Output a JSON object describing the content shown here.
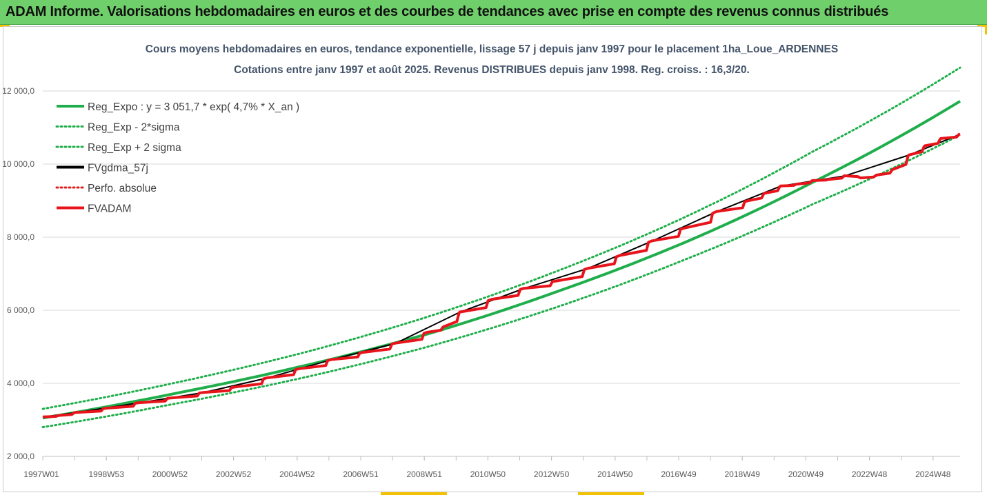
{
  "banner": {
    "title": "ADAM Informe. Valorisations hebdomadaires en euros et des courbes de tendances avec prise en compte des revenus connus distribués"
  },
  "colors": {
    "banner_bg": "#6fcf6a",
    "reg_expo": "#1fae4b",
    "fvgdma": "#000000",
    "perfo": "#e02020",
    "fvadam": "#e8141b"
  },
  "chart_data": {
    "type": "line",
    "title_line1": "Cours moyens hebdomadaires en euros, tendance exponentielle, lissage 57 j depuis janv 1997 pour le placement 1ha_Loue_ARDENNES",
    "title_line2": "Cotations entre janv 1997 et août 2025. Revenus DISTRIBUES depuis janv 1998. Reg. croiss. : 16,3/20.",
    "ylim": [
      2000,
      12000
    ],
    "y_ticks": [
      "2 000,0",
      "4 000,0",
      "6 000,0",
      "8 000,0",
      "10 000,0",
      "12 000,0"
    ],
    "x_tick_labels": [
      "1997W01",
      "1998W53",
      "2000W52",
      "2002W52",
      "2004W52",
      "2006W51",
      "2008W51",
      "2010W50",
      "2012W50",
      "2014W50",
      "2016W49",
      "2018W49",
      "2020W49",
      "2022W48",
      "2024W48"
    ],
    "x_range_years": [
      1997.0,
      2025.6
    ],
    "grid": "horizontal",
    "legend_position": "top-left",
    "legend": [
      {
        "label": "Reg_Expo : y = 3 051,7 * exp( 4,7% *  X_an )",
        "style": "solid",
        "color": "#1fae4b"
      },
      {
        "label": "Reg_Exp - 2*sigma",
        "style": "dotted",
        "color": "#1fae4b"
      },
      {
        "label": "Reg_Exp + 2 sigma",
        "style": "dotted",
        "color": "#1fae4b"
      },
      {
        "label": "FVgdma_57j",
        "style": "solid",
        "color": "#000000"
      },
      {
        "label": "Perfo. absolue",
        "style": "dotted",
        "color": "#e02020"
      },
      {
        "label": "FVADAM",
        "style": "solid",
        "color": "#e8141b"
      }
    ],
    "series": [
      {
        "name": "Reg_Expo : y = 3 051,7 * exp( 4,7% *  X_an )",
        "x": [
          1997,
          2001,
          2005,
          2009,
          2013,
          2017,
          2021,
          2025.6
        ],
        "values": [
          3050,
          3700,
          4450,
          5350,
          6500,
          7850,
          9500,
          11720
        ]
      },
      {
        "name": "Reg_Exp - 2*sigma",
        "x": [
          1997,
          2001,
          2005,
          2009,
          2013,
          2017,
          2021,
          2025.6
        ],
        "values": [
          2800,
          3420,
          4130,
          5000,
          6080,
          7380,
          8900,
          10800
        ]
      },
      {
        "name": "Reg_Exp + 2 sigma",
        "x": [
          1997,
          2001,
          2005,
          2009,
          2013,
          2017,
          2021,
          2025.6
        ],
        "values": [
          3300,
          3990,
          4810,
          5820,
          7060,
          8540,
          10340,
          12640
        ]
      },
      {
        "name": "FVADAM",
        "x": [
          1997.0,
          1997.5,
          1998.0,
          1999.0,
          2000.0,
          2001.0,
          2002.0,
          2003.0,
          2004.0,
          2005.0,
          2006.0,
          2007.0,
          2008.0,
          2009.0,
          2009.5,
          2010.0,
          2011.0,
          2012.0,
          2013.0,
          2014.0,
          2015.0,
          2016.0,
          2017.0,
          2018.0,
          2019.0,
          2019.5,
          2020.0,
          2020.5,
          2021.0,
          2021.5,
          2022.0,
          2022.5,
          2023.0,
          2023.5,
          2024.0,
          2024.5,
          2025.0,
          2025.6
        ],
        "values": [
          3080,
          3120,
          3200,
          3320,
          3470,
          3600,
          3750,
          3900,
          4150,
          4400,
          4650,
          4850,
          5100,
          5400,
          5550,
          5950,
          6300,
          6600,
          6800,
          7150,
          7500,
          7900,
          8250,
          8700,
          9000,
          9200,
          9400,
          9450,
          9550,
          9580,
          9680,
          9620,
          9700,
          9850,
          10250,
          10500,
          10700,
          10820
        ]
      },
      {
        "name": "FVgdma_57j",
        "x": [
          1997.0,
          1998.0,
          2000.0,
          2002.0,
          2004.0,
          2006.0,
          2008.0,
          2010.0,
          2012.0,
          2014.0,
          2016.0,
          2018.0,
          2020.0,
          2022.0,
          2024.0,
          2025.6
        ],
        "values": [
          3075,
          3195,
          3465,
          3745,
          4145,
          4645,
          5095,
          5945,
          6595,
          7145,
          7895,
          8695,
          9395,
          9675,
          10245,
          10815
        ]
      }
    ]
  }
}
